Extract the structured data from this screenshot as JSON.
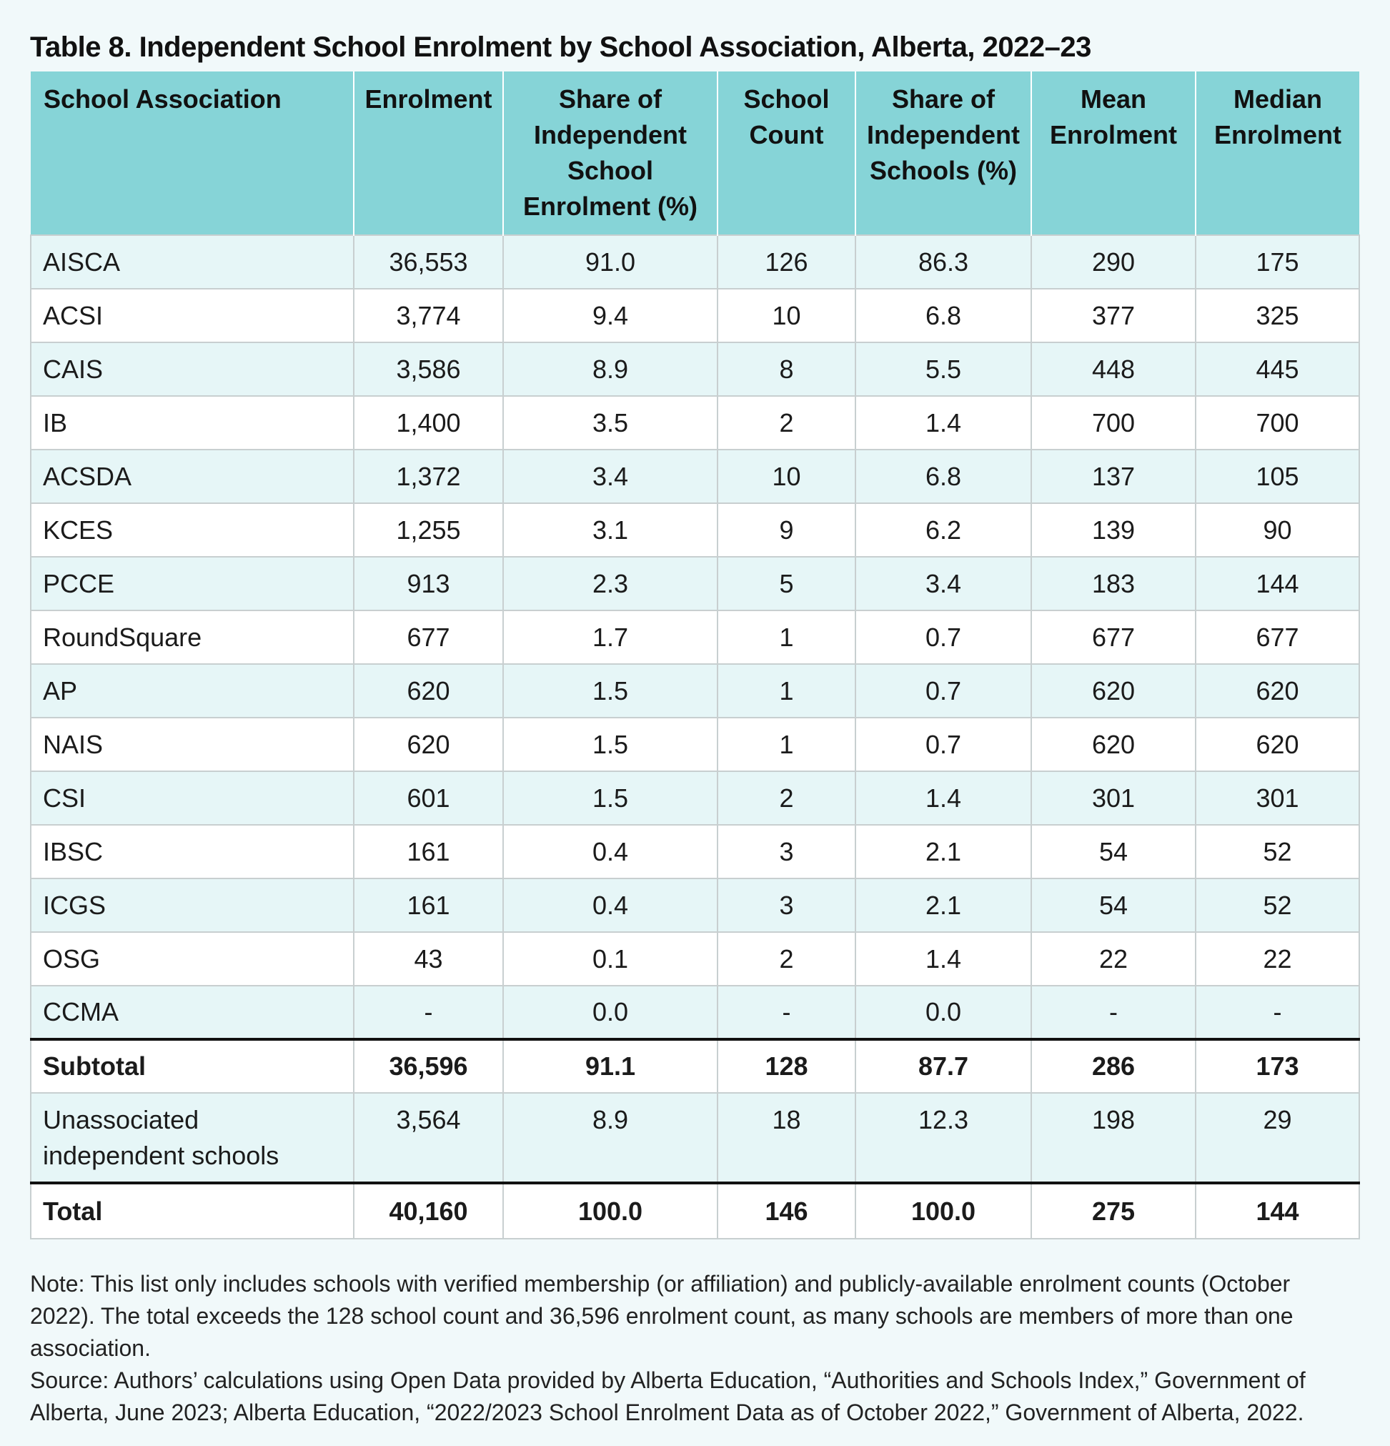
{
  "title": "Table 8. Independent School Enrolment by School Association, Alberta, 2022–23",
  "columns": [
    "School Association",
    "Enrolment",
    "Share of Independent School Enrolment (%)",
    "School Count",
    "Share of Independent Schools (%)",
    "Mean Enrolment",
    "Median Enrolment"
  ],
  "header_lines": [
    [
      "School Association"
    ],
    [
      "Enrolment"
    ],
    [
      "Share of",
      "Independent",
      "School",
      "Enrolment (%)"
    ],
    [
      "School",
      "Count"
    ],
    [
      "Share of",
      "Independent",
      "Schools (%)"
    ],
    [
      "Mean",
      "Enrolment"
    ],
    [
      "Median",
      "Enrolment"
    ]
  ],
  "rows": [
    [
      "AISCA",
      "36,553",
      "91.0",
      "126",
      "86.3",
      "290",
      "175"
    ],
    [
      "ACSI",
      "3,774",
      "9.4",
      "10",
      "6.8",
      "377",
      "325"
    ],
    [
      "CAIS",
      "3,586",
      "8.9",
      "8",
      "5.5",
      "448",
      "445"
    ],
    [
      "IB",
      "1,400",
      "3.5",
      "2",
      "1.4",
      "700",
      "700"
    ],
    [
      "ACSDA",
      "1,372",
      "3.4",
      "10",
      "6.8",
      "137",
      "105"
    ],
    [
      "KCES",
      "1,255",
      "3.1",
      "9",
      "6.2",
      "139",
      "90"
    ],
    [
      "PCCE",
      "913",
      "2.3",
      "5",
      "3.4",
      "183",
      "144"
    ],
    [
      "RoundSquare",
      "677",
      "1.7",
      "1",
      "0.7",
      "677",
      "677"
    ],
    [
      "AP",
      "620",
      "1.5",
      "1",
      "0.7",
      "620",
      "620"
    ],
    [
      "NAIS",
      "620",
      "1.5",
      "1",
      "0.7",
      "620",
      "620"
    ],
    [
      "CSI",
      "601",
      "1.5",
      "2",
      "1.4",
      "301",
      "301"
    ],
    [
      "IBSC",
      "161",
      "0.4",
      "3",
      "2.1",
      "54",
      "52"
    ],
    [
      "ICGS",
      "161",
      "0.4",
      "3",
      "2.1",
      "54",
      "52"
    ],
    [
      "OSG",
      "43",
      "0.1",
      "2",
      "1.4",
      "22",
      "22"
    ],
    [
      "CCMA",
      "-",
      "0.0",
      "-",
      "0.0",
      "-",
      "-"
    ]
  ],
  "subtotal": [
    "Subtotal",
    "36,596",
    "91.1",
    "128",
    "87.7",
    "286",
    "173"
  ],
  "unassociated": [
    "Unassociated independent schools",
    "3,564",
    "8.9",
    "18",
    "12.3",
    "198",
    "29"
  ],
  "unassociated_label_lines": [
    "Unassociated",
    "independent schools"
  ],
  "total": [
    "Total",
    "40,160",
    "100.0",
    "146",
    "100.0",
    "275",
    "144"
  ],
  "note": "Note: This list only includes schools with verified membership (or affiliation) and publicly-available enrolment counts (October 2022). The total exceeds the 128 school count and 36,596 enrolment count, as many schools are members of more than one association.",
  "source": "Source: Authors’ calculations using Open Data provided by Alberta Education, “Authorities and Schools Index,” Government of Alberta, June 2023; Alberta Education, “2022/2023 School Enrolment Data as of October 2022,” Government of Alberta, 2022."
}
